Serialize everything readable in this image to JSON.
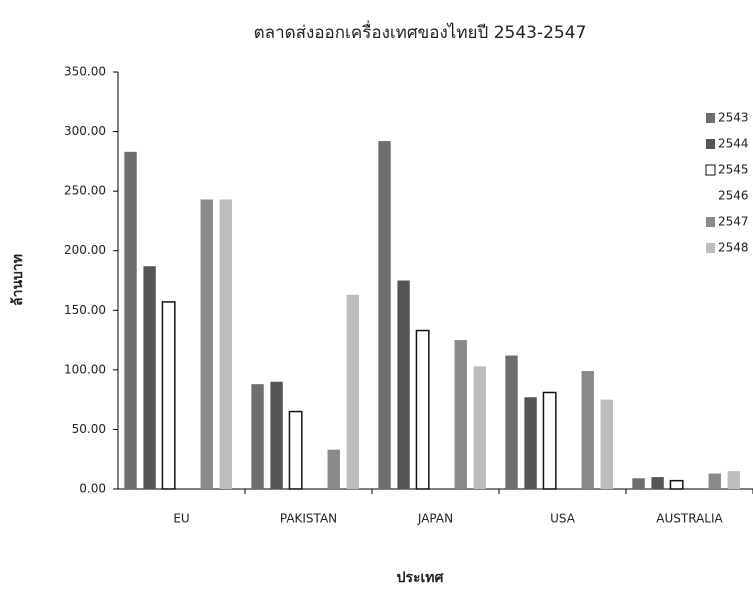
{
  "chart_data": {
    "type": "bar",
    "title": "ตลาดส่งออกเครื่องเทศของไทยปี 2543-2547",
    "x_label": "ประเทศ",
    "y_label": "ล้านบาท",
    "categories": [
      "EU",
      "PAKISTAN",
      "JAPAN",
      "USA",
      "AUSTRALIA"
    ],
    "series": [
      {
        "name": "2543",
        "color": "#6e6e6e",
        "values": [
          283,
          88,
          292,
          112,
          9
        ]
      },
      {
        "name": "2544",
        "color": "#555555",
        "values": [
          187,
          90,
          175,
          77,
          10
        ]
      },
      {
        "name": "2545",
        "color": "#ffffff",
        "edgecolor": "#111111",
        "values": [
          157,
          65,
          133,
          81,
          7
        ]
      },
      {
        "name": "2546",
        "color": "#ffffff",
        "values": [
          null,
          null,
          null,
          null,
          null
        ]
      },
      {
        "name": "2547",
        "color": "#8a8a8a",
        "values": [
          243,
          33,
          125,
          99,
          13
        ]
      },
      {
        "name": "2548",
        "color": "#bdbdbd",
        "values": [
          243,
          163,
          103,
          75,
          15
        ]
      }
    ],
    "ylim": [
      0,
      350
    ],
    "yticks": [
      {
        "value": 0,
        "label": "0.00"
      },
      {
        "value": 50,
        "label": "50.00"
      },
      {
        "value": 100,
        "label": "100.00"
      },
      {
        "value": 150,
        "label": "150.00"
      },
      {
        "value": 200,
        "label": "200.00"
      },
      {
        "value": 250,
        "label": "250.00"
      },
      {
        "value": 300,
        "label": "300.00"
      },
      {
        "value": 350,
        "label": "350.00"
      }
    ],
    "legend": "right"
  }
}
